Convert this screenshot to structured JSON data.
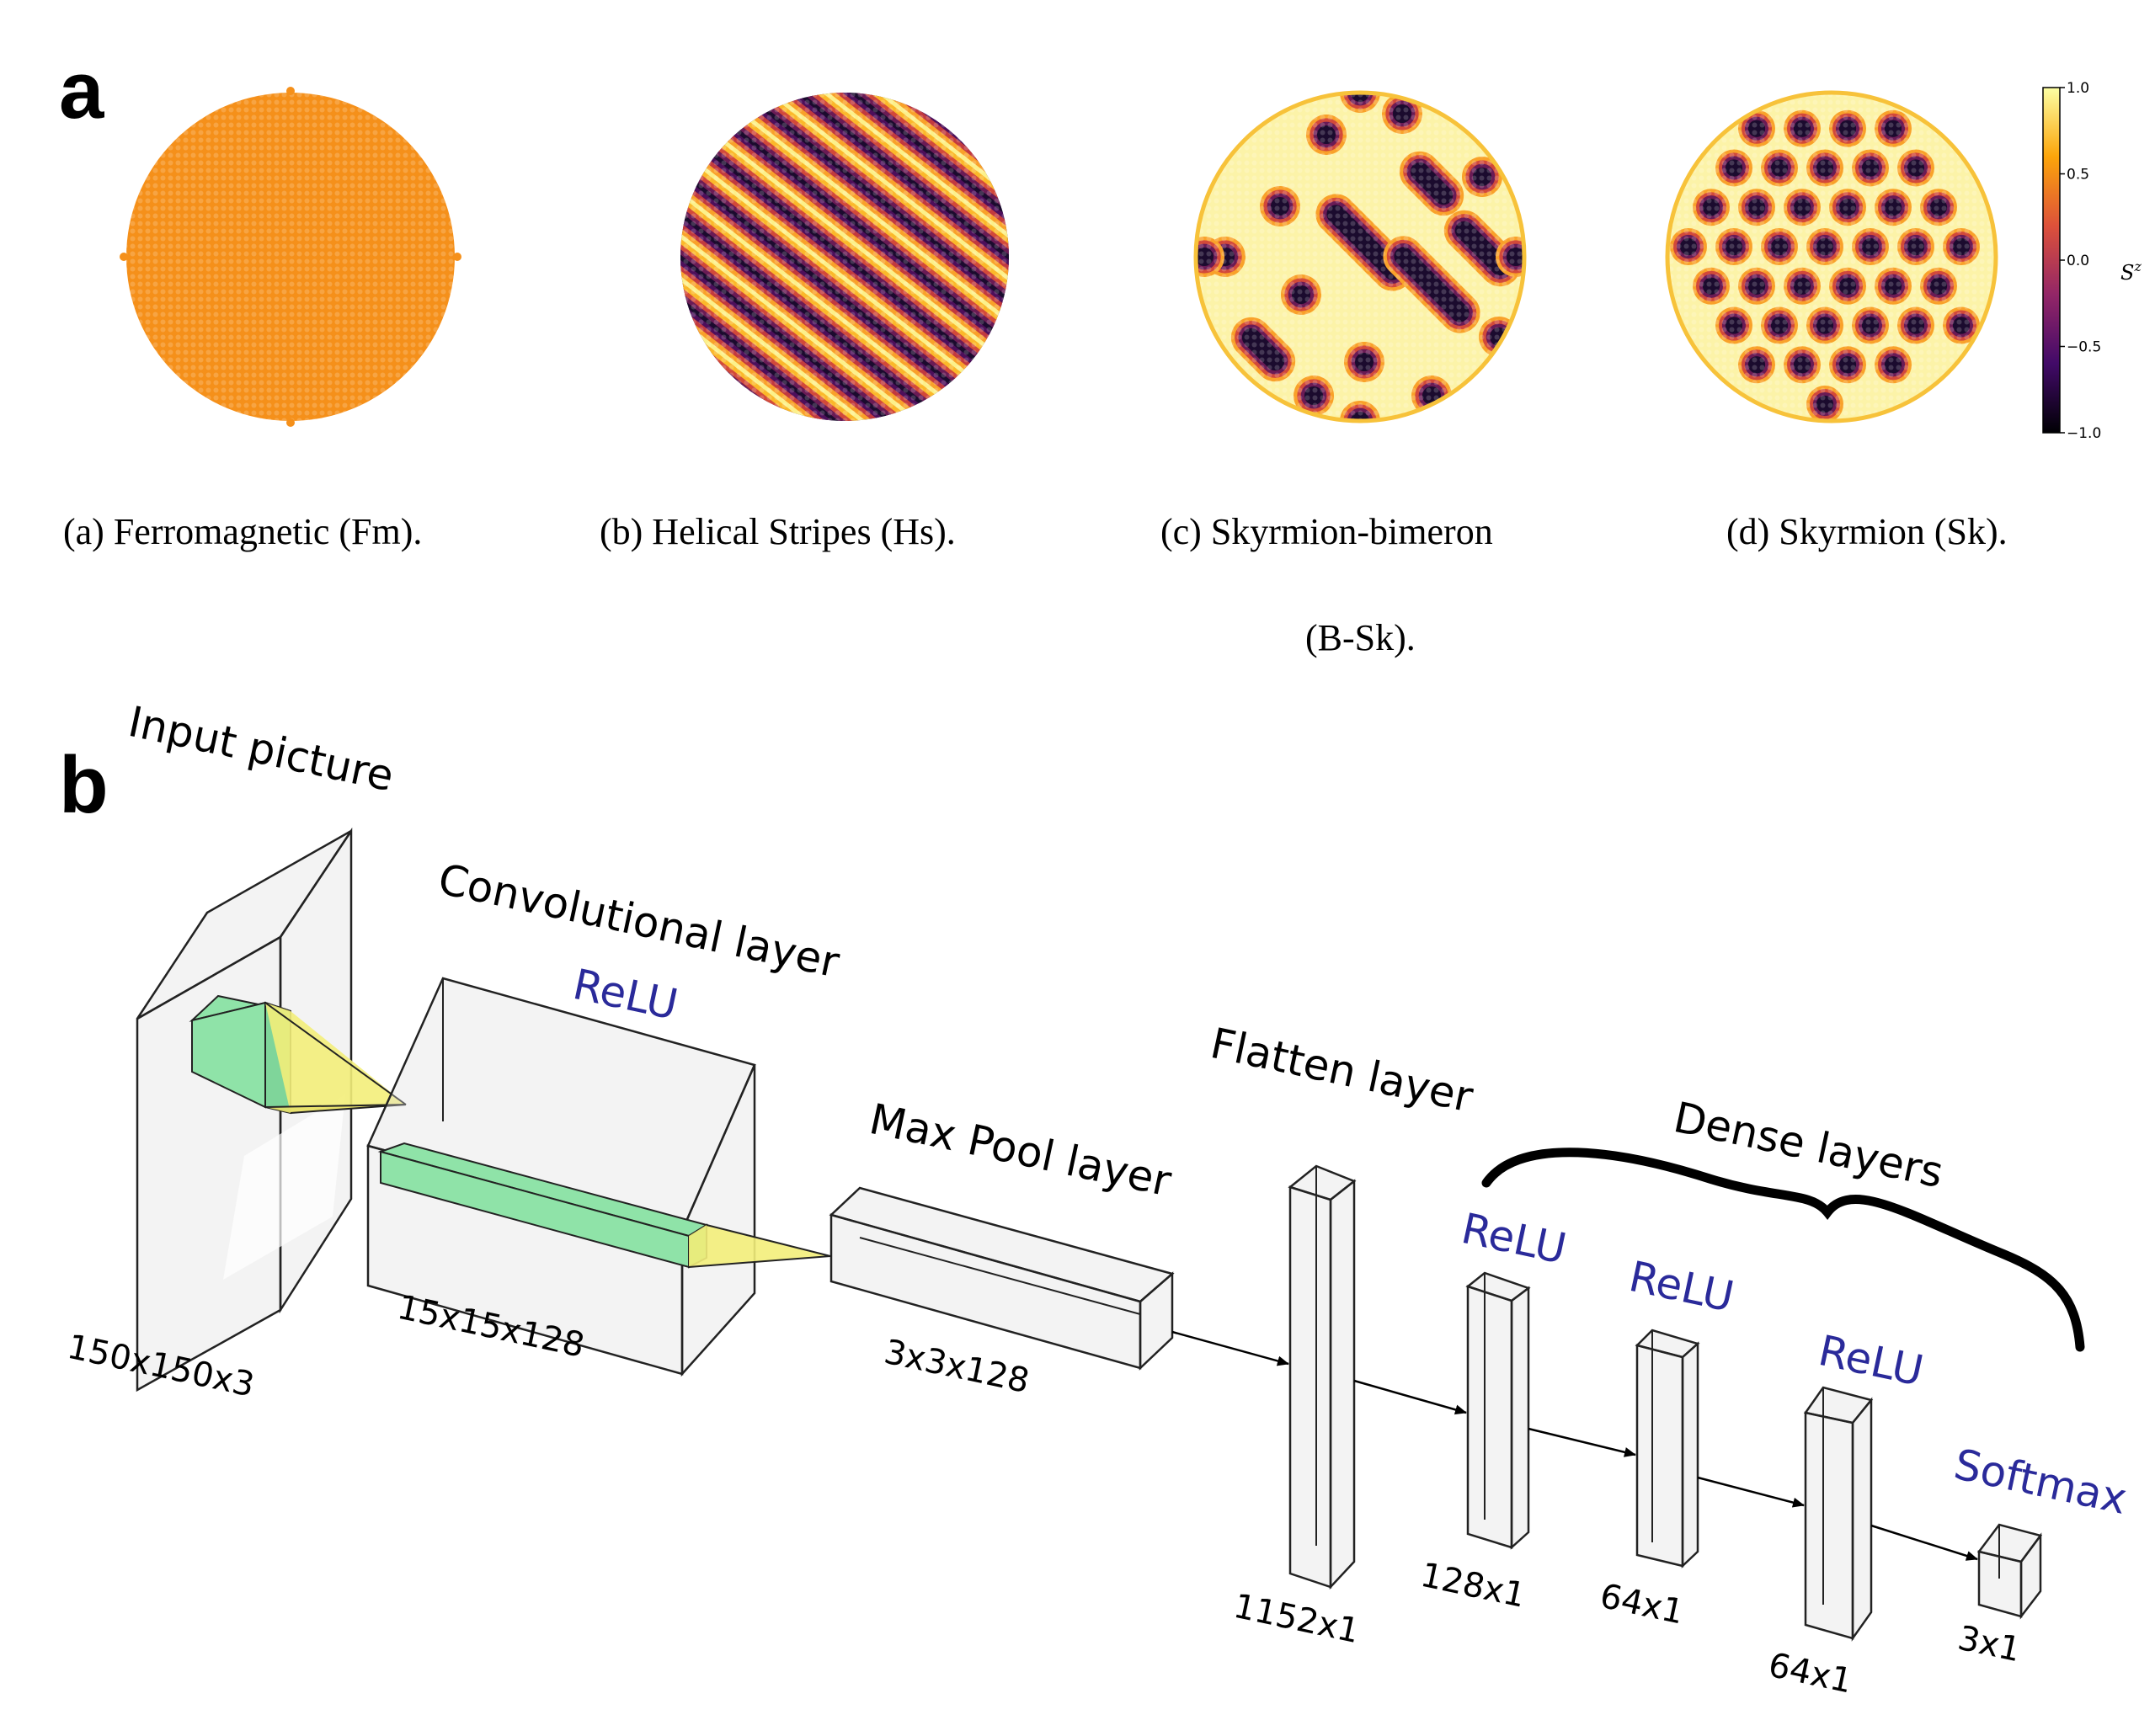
{
  "panel_a": {
    "label": "a",
    "captions": [
      {
        "line1": "(a) Ferromagnetic (Fm).",
        "line2": ""
      },
      {
        "line1": "(b) Helical Stripes (Hs).",
        "line2": ""
      },
      {
        "line1": "(c) Skyrmion-bimeron",
        "line2": "(B-Sk)."
      },
      {
        "line1": "(d) Skyrmion (Sk).",
        "line2": ""
      }
    ],
    "colorbar": {
      "title": "S",
      "title_sup": "z",
      "ticks": [
        "1.0",
        "0.5",
        "0.0",
        "−0.5",
        "−1.0"
      ],
      "colormap": "inferno",
      "colors": [
        "#000004",
        "#420a68",
        "#932667",
        "#dd513a",
        "#fca50a",
        "#fcffa4"
      ]
    },
    "patterns": [
      "ferromagnetic",
      "helical-stripes",
      "skyrmion-bimeron",
      "skyrmion-lattice"
    ]
  },
  "panel_b": {
    "label": "b",
    "layer_names": {
      "input": "Input picture",
      "conv": "Convolutional layer",
      "pool": "Max Pool layer",
      "flatten": "Flatten layer",
      "dense": "Dense layers"
    },
    "activations": {
      "conv": "ReLU",
      "dense1": "ReLU",
      "dense2": "ReLU",
      "dense3": "ReLU",
      "output": "Softmax"
    },
    "dims": {
      "input": "150x150x3",
      "conv": "15x15x128",
      "pool": "3x3x128",
      "flatten": "1152x1",
      "dense1": "128x1",
      "dense2": "64x1",
      "dense3": "64x1",
      "output": "3x1"
    },
    "colors": {
      "kernel": "#8fe3a8",
      "projection": "#f3ee7a",
      "activation_text": "#2a2a9a"
    }
  }
}
